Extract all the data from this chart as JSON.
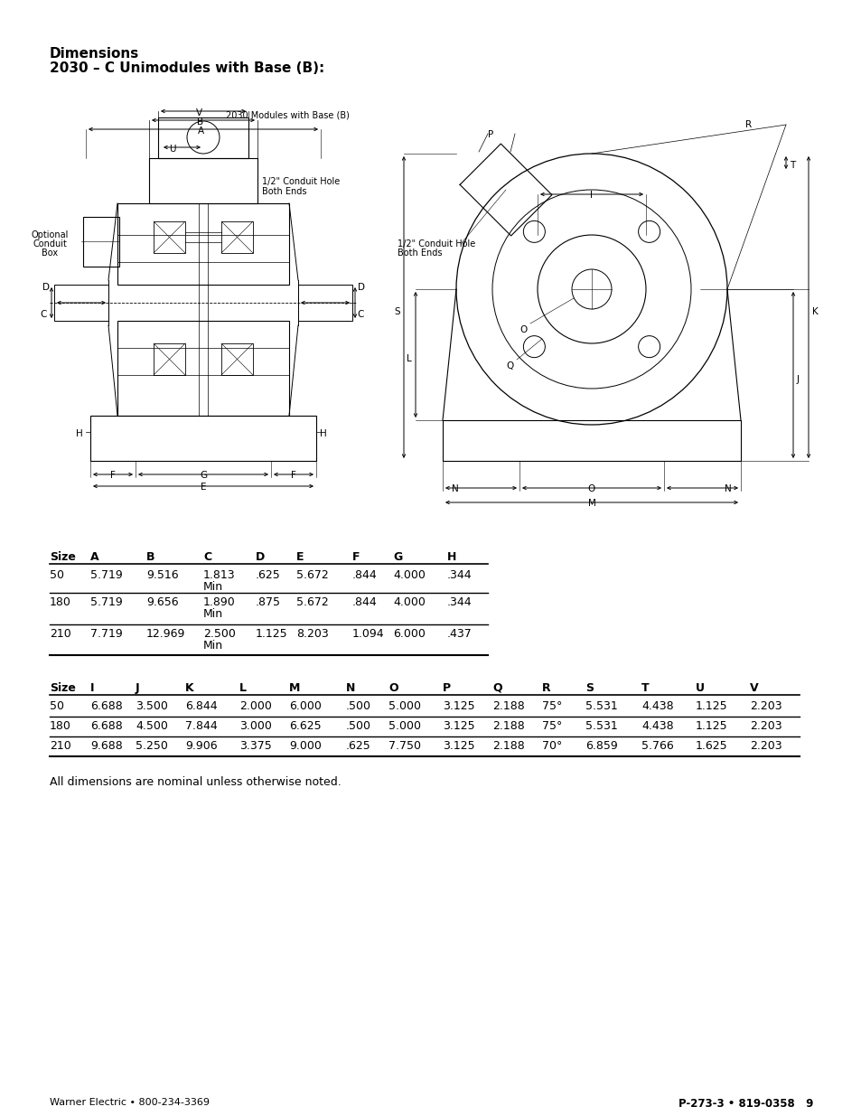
{
  "title_line1": "Dimensions",
  "title_line2": "2030 – C Unimodules with Base (B):",
  "table1_headers": [
    "Size",
    "A",
    "B",
    "C",
    "D",
    "E",
    "F",
    "G",
    "H"
  ],
  "table1_rows": [
    [
      "50",
      "5.719",
      "9.516",
      "1.813",
      ".625",
      "5.672",
      ".844",
      "4.000",
      ".344"
    ],
    [
      "180",
      "5.719",
      "9.656",
      "1.890",
      ".875",
      "5.672",
      ".844",
      "4.000",
      ".344"
    ],
    [
      "210",
      "7.719",
      "12.969",
      "2.500",
      "1.125",
      "8.203",
      "1.094",
      "6.000",
      ".437"
    ]
  ],
  "table2_headers": [
    "Size",
    "I",
    "J",
    "K",
    "L",
    "M",
    "N",
    "O",
    "P",
    "Q",
    "R",
    "S",
    "T",
    "U",
    "V"
  ],
  "table2_rows": [
    [
      "50",
      "6.688",
      "3.500",
      "6.844",
      "2.000",
      "6.000",
      ".500",
      "5.000",
      "3.125",
      "2.188",
      "75°",
      "5.531",
      "4.438",
      "1.125",
      "2.203"
    ],
    [
      "180",
      "6.688",
      "4.500",
      "7.844",
      "3.000",
      "6.625",
      ".500",
      "5.000",
      "3.125",
      "2.188",
      "75°",
      "5.531",
      "4.438",
      "1.125",
      "2.203"
    ],
    [
      "210",
      "9.688",
      "5.250",
      "9.906",
      "3.375",
      "9.000",
      ".625",
      "7.750",
      "3.125",
      "2.188",
      "70°",
      "6.859",
      "5.766",
      "1.625",
      "2.203"
    ]
  ],
  "footnote": "All dimensions are nominal unless otherwise noted.",
  "footer_left": "Warner Electric • 800-234-3369",
  "footer_right": "P-273-3 • 819-0358   9",
  "bg_color": "#ffffff"
}
